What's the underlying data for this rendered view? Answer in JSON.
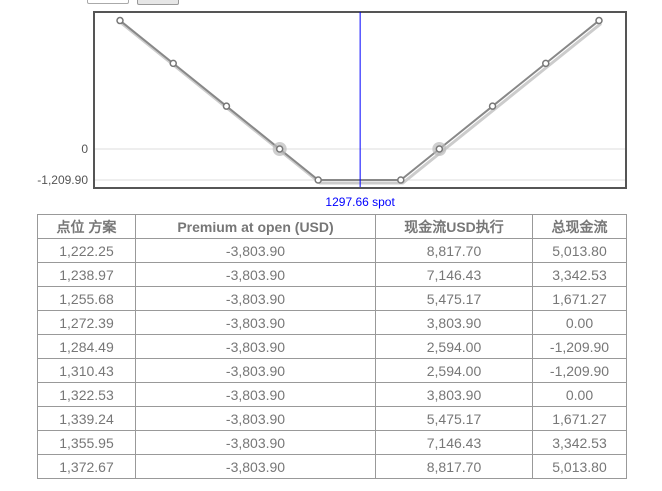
{
  "chart_data": {
    "type": "line",
    "x": [
      1222.25,
      1238.97,
      1255.68,
      1272.39,
      1284.49,
      1310.43,
      1322.53,
      1339.24,
      1355.95,
      1372.67
    ],
    "y": [
      5013.8,
      3342.53,
      1671.27,
      0.0,
      -1209.9,
      -1209.9,
      0.0,
      1671.27,
      3342.53,
      5013.8
    ],
    "ytick_labels": [
      "0",
      "-1,209.90"
    ],
    "ytick_values": [
      0,
      -1209.9
    ],
    "highlighted_points": [
      1272.39,
      1322.53
    ],
    "spot": 1297.66,
    "spot_label": "1297.66 spot",
    "colors": {
      "line": "#888888",
      "spot": "#0000ff",
      "frame": "#555555"
    }
  },
  "table": {
    "headers": [
      "点位 方案",
      "Premium at open (USD)",
      "现金流USD执行",
      "总现金流"
    ],
    "rows": [
      [
        "1,222.25",
        "-3,803.90",
        "8,817.70",
        "5,013.80"
      ],
      [
        "1,238.97",
        "-3,803.90",
        "7,146.43",
        "3,342.53"
      ],
      [
        "1,255.68",
        "-3,803.90",
        "5,475.17",
        "1,671.27"
      ],
      [
        "1,272.39",
        "-3,803.90",
        "3,803.90",
        "0.00"
      ],
      [
        "1,284.49",
        "-3,803.90",
        "2,594.00",
        "-1,209.90"
      ],
      [
        "1,310.43",
        "-3,803.90",
        "2,594.00",
        "-1,209.90"
      ],
      [
        "1,322.53",
        "-3,803.90",
        "3,803.90",
        "0.00"
      ],
      [
        "1,339.24",
        "-3,803.90",
        "5,475.17",
        "1,671.27"
      ],
      [
        "1,355.95",
        "-3,803.90",
        "7,146.43",
        "3,342.53"
      ],
      [
        "1,372.67",
        "-3,803.90",
        "8,817.70",
        "5,013.80"
      ]
    ]
  }
}
